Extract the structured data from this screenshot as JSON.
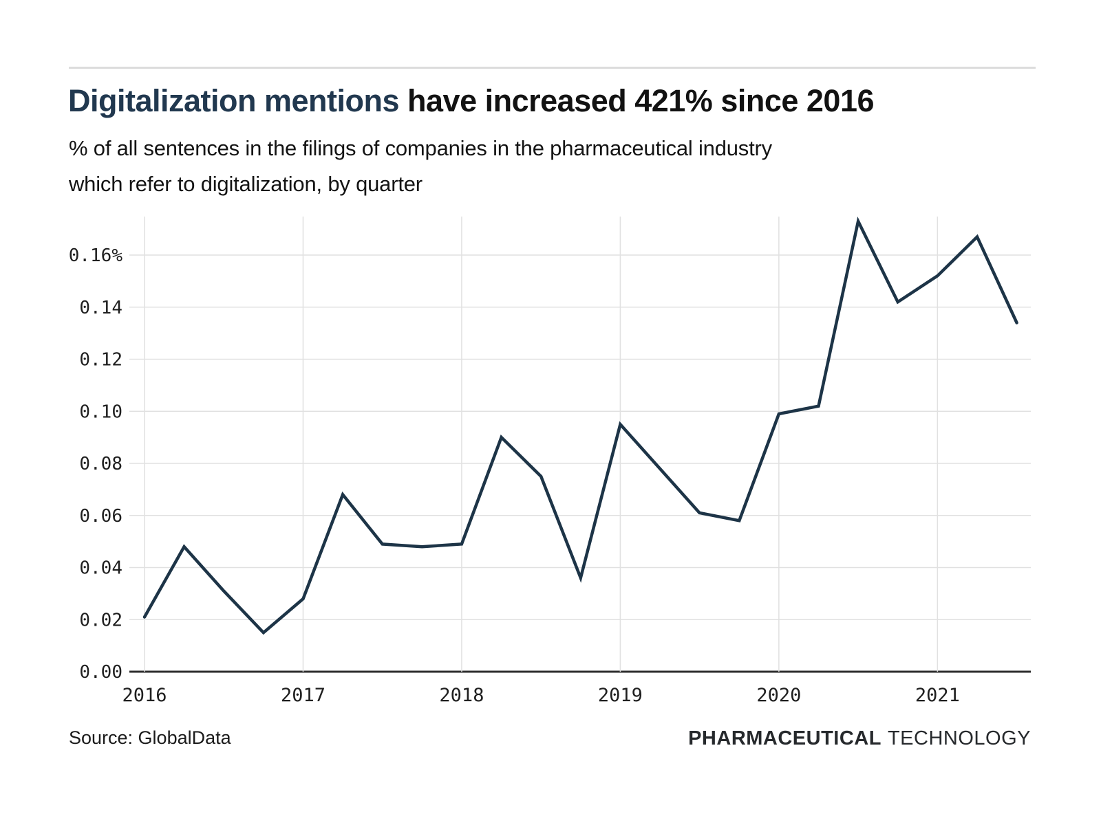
{
  "page": {
    "title_highlight": "Digitalization mentions",
    "title_rest": " have increased 421% since 2016",
    "subtitle_lines": [
      "% of all sentences in the filings of companies in the pharmaceutical industry",
      "which refer to digitalization, by quarter"
    ],
    "source_note": "Source: GlobalData",
    "logo": {
      "bold": "PHARMACEUTICAL",
      "light": "TECHNOLOGY"
    }
  },
  "colors": {
    "line": "#1d3447",
    "title_highlight": "#21384f",
    "grid": "#e1e1e1",
    "axis": "#2d2d2d",
    "tick_label": "#1f1f1f"
  },
  "chart_data": {
    "type": "line",
    "title": "Digitalization mentions have increased 421% since 2016",
    "subtitle": "% of all sentences in the filings of companies in the pharmaceutical industry which refer to digitalization, by quarter",
    "unit": "percent of sentences",
    "categories": [
      "Q1 2016",
      "Q2 2016",
      "Q3 2016",
      "Q4 2016",
      "Q1 2017",
      "Q2 2017",
      "Q3 2017",
      "Q4 2017",
      "Q1 2018",
      "Q2 2018",
      "Q3 2018",
      "Q4 2018",
      "Q1 2019",
      "Q2 2019",
      "Q3 2019",
      "Q4 2019",
      "Q1 2020",
      "Q2 2020",
      "Q3 2020",
      "Q4 2020",
      "Q1 2021",
      "Q2 2021",
      "Q3 2021"
    ],
    "values": [
      0.021,
      0.048,
      0.031,
      0.015,
      0.028,
      0.068,
      0.049,
      0.048,
      0.049,
      0.09,
      0.075,
      0.036,
      0.095,
      0.078,
      0.061,
      0.058,
      0.099,
      0.102,
      0.173,
      0.142,
      0.152,
      0.167,
      0.134
    ],
    "x_tick_labels": [
      "2016",
      "2017",
      "2018",
      "2019",
      "2020",
      "2021"
    ],
    "y_ticks": [
      {
        "value": 0.0,
        "label": "0.00"
      },
      {
        "value": 0.02,
        "label": "0.02"
      },
      {
        "value": 0.04,
        "label": "0.04"
      },
      {
        "value": 0.06,
        "label": "0.06"
      },
      {
        "value": 0.08,
        "label": "0.08"
      },
      {
        "value": 0.1,
        "label": "0.10"
      },
      {
        "value": 0.12,
        "label": "0.12"
      },
      {
        "value": 0.14,
        "label": "0.14"
      },
      {
        "value": 0.16,
        "label": "0.16%"
      }
    ],
    "ylim": [
      0,
      0.175
    ],
    "grid": true,
    "legend_position": "none",
    "xlabel": "",
    "ylabel": ""
  }
}
